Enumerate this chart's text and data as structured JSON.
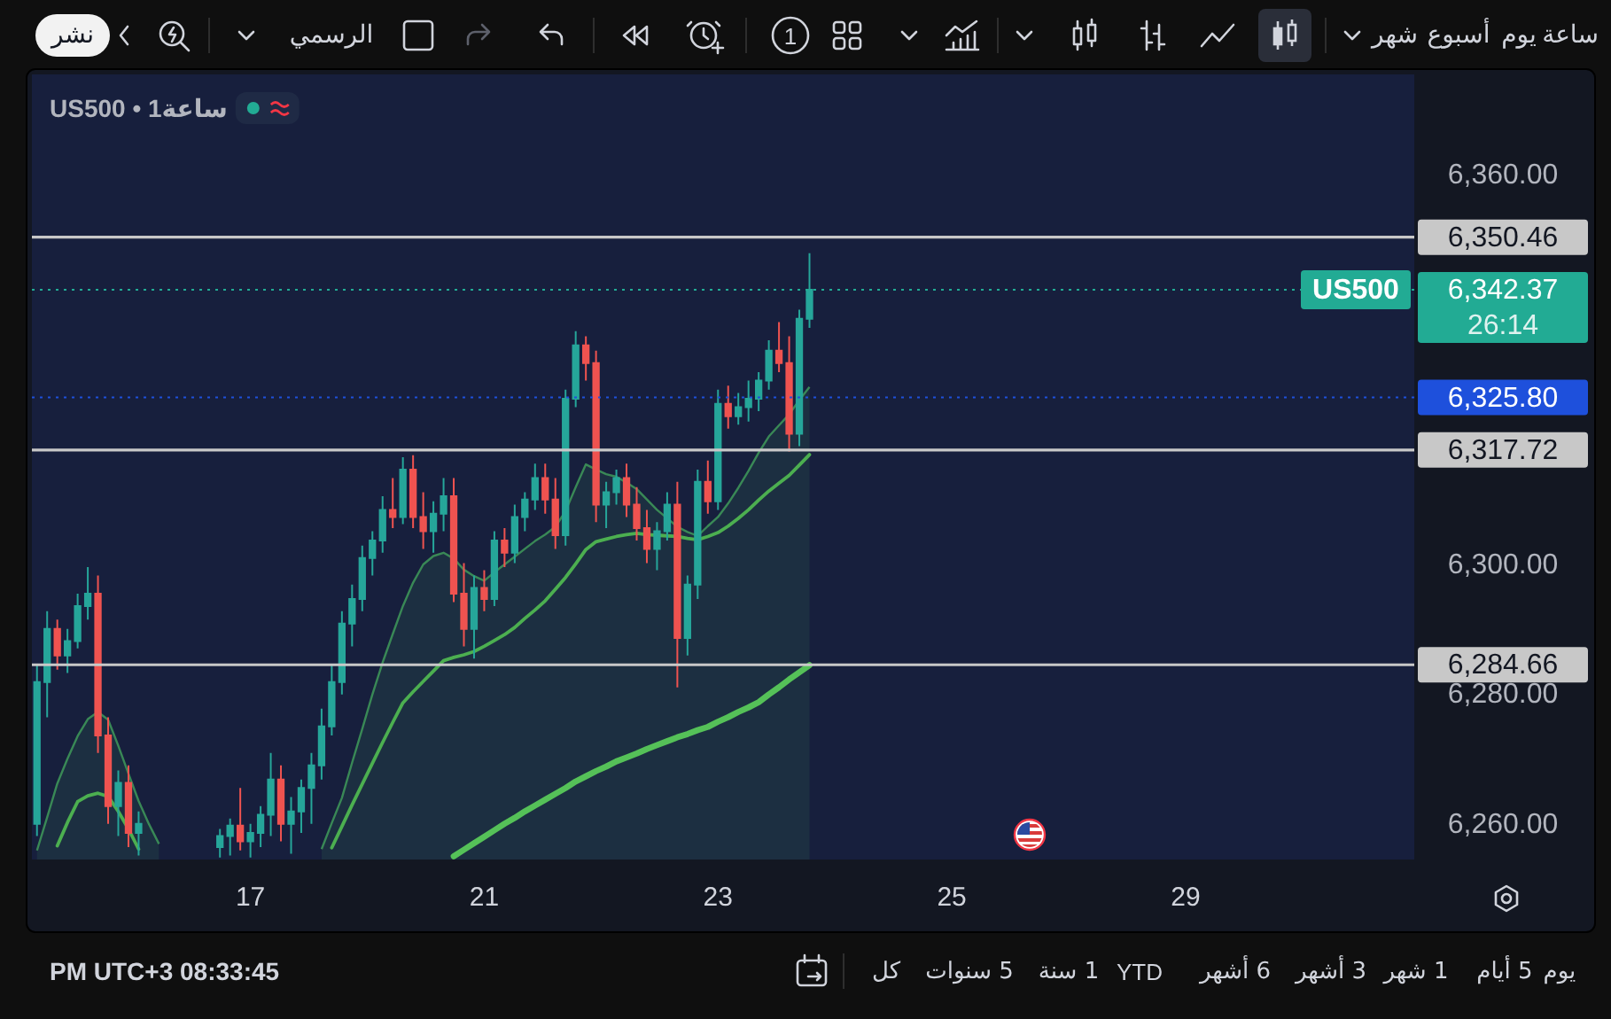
{
  "chart_data": {
    "type": "candlestick",
    "title": "US500 • 1ساعة",
    "categories": [
      null,
      null,
      null,
      null,
      null,
      null,
      null,
      null,
      null,
      null,
      null,
      null,
      null,
      null,
      null,
      null,
      null,
      null,
      null,
      null,
      null,
      "17",
      null,
      null,
      null,
      null,
      null,
      null,
      null,
      null,
      null,
      null,
      null,
      null,
      null,
      null,
      null,
      null,
      null,
      null,
      null,
      null,
      null,
      null,
      "21",
      null,
      null,
      null,
      null,
      null,
      null,
      null,
      null,
      null,
      null,
      null,
      null,
      null,
      null,
      null,
      null,
      null,
      null,
      null,
      null,
      null,
      null,
      "23",
      null,
      null,
      null,
      null,
      null,
      null,
      null,
      null,
      null,
      null,
      null,
      null,
      null,
      null,
      null,
      null,
      null,
      null,
      null,
      null,
      null,
      null,
      "25",
      null,
      null,
      null,
      null,
      null,
      null,
      null,
      null,
      null,
      null,
      null,
      null,
      null,
      null,
      null,
      null,
      null,
      null,
      null,
      null,
      null,
      null,
      "29",
      null,
      null,
      null,
      null,
      null,
      null,
      null,
      null,
      null,
      null,
      null,
      null,
      null,
      null,
      null,
      null,
      null,
      null,
      null,
      null,
      null,
      null
    ],
    "ohlc": [
      [
        6260.2,
        6284.7,
        6258.3,
        6282.0
      ],
      [
        6282.0,
        6292.9,
        6276.6,
        6290.2
      ],
      [
        6290.2,
        6291.6,
        6283.9,
        6286.1
      ],
      [
        6286.1,
        6290.2,
        6283.4,
        6288.3
      ],
      [
        6288.3,
        6295.6,
        6287.2,
        6293.7
      ],
      [
        6293.7,
        6299.7,
        6291.6,
        6295.6
      ],
      [
        6295.6,
        6298.4,
        6271.1,
        6273.8
      ],
      [
        6273.8,
        6276.6,
        6260.2,
        6262.9
      ],
      [
        6262.9,
        6268.4,
        6258.3,
        6266.5
      ],
      [
        6266.5,
        6269.2,
        6256.6,
        6258.8
      ],
      [
        6258.8,
        6262.1,
        6255.3,
        6260.2
      ],
      null,
      null,
      null,
      null,
      null,
      null,
      null,
      [
        6256.6,
        6259.4,
        6255.0,
        6258.3
      ],
      [
        6258.3,
        6261.0,
        6255.3,
        6259.9
      ],
      [
        6259.9,
        6265.7,
        6256.1,
        6257.5
      ],
      [
        6257.5,
        6260.2,
        6255.0,
        6258.8
      ],
      [
        6258.8,
        6262.9,
        6256.6,
        6261.6
      ],
      [
        6261.6,
        6271.1,
        6258.3,
        6267.0
      ],
      [
        6267.0,
        6269.2,
        6257.5,
        6260.2
      ],
      [
        6260.2,
        6264.3,
        6255.6,
        6262.1
      ],
      [
        6262.1,
        6267.0,
        6258.8,
        6265.7
      ],
      [
        6265.7,
        6271.1,
        6260.2,
        6269.2
      ],
      [
        6269.2,
        6277.9,
        6267.0,
        6275.2
      ],
      [
        6275.2,
        6284.7,
        6273.8,
        6282.0
      ],
      [
        6282.0,
        6292.9,
        6280.1,
        6291.0
      ],
      [
        6291.0,
        6297.0,
        6287.5,
        6294.8
      ],
      [
        6294.8,
        6303.0,
        6292.9,
        6301.1
      ],
      [
        6301.1,
        6305.2,
        6298.4,
        6303.8
      ],
      [
        6303.8,
        6310.6,
        6301.9,
        6308.5
      ],
      [
        6308.5,
        6313.4,
        6305.7,
        6307.4
      ],
      [
        6307.4,
        6316.6,
        6306.3,
        6314.7
      ],
      [
        6314.7,
        6316.9,
        6305.7,
        6307.4
      ],
      [
        6307.4,
        6311.2,
        6302.5,
        6305.2
      ],
      [
        6305.2,
        6309.8,
        6301.9,
        6307.9
      ],
      [
        6307.9,
        6313.4,
        6305.2,
        6310.6
      ],
      [
        6310.6,
        6313.4,
        6294.3,
        6295.6
      ],
      [
        6295.6,
        6300.3,
        6287.5,
        6290.2
      ],
      [
        6290.2,
        6298.4,
        6285.6,
        6296.5
      ],
      [
        6296.5,
        6299.2,
        6292.9,
        6294.8
      ],
      [
        6294.8,
        6305.2,
        6293.7,
        6303.8
      ],
      [
        6303.8,
        6305.7,
        6299.7,
        6301.9
      ],
      [
        6301.9,
        6309.3,
        6300.3,
        6307.4
      ],
      [
        6307.4,
        6311.2,
        6305.2,
        6310.1
      ],
      [
        6310.1,
        6315.6,
        6308.5,
        6313.4
      ],
      [
        6313.4,
        6315.6,
        6307.9,
        6310.1
      ],
      [
        6310.1,
        6313.4,
        6302.5,
        6304.6
      ],
      [
        6304.6,
        6327.0,
        6303.0,
        6325.6
      ],
      [
        6325.6,
        6336.0,
        6324.3,
        6333.8
      ],
      [
        6333.8,
        6335.2,
        6328.4,
        6331.1
      ],
      [
        6331.1,
        6333.0,
        6306.6,
        6309.3
      ],
      [
        6309.3,
        6312.8,
        6305.7,
        6311.2
      ],
      [
        6311.2,
        6314.7,
        6309.3,
        6313.4
      ],
      [
        6313.4,
        6315.6,
        6307.4,
        6309.3
      ],
      [
        6309.3,
        6312.0,
        6303.8,
        6305.7
      ],
      [
        6305.7,
        6308.5,
        6300.3,
        6302.5
      ],
      [
        6302.5,
        6306.6,
        6299.2,
        6305.2
      ],
      [
        6305.2,
        6311.2,
        6303.8,
        6309.3
      ],
      [
        6309.3,
        6312.8,
        6281.2,
        6288.8
      ],
      [
        6288.8,
        6298.4,
        6286.1,
        6297.0
      ],
      [
        6297.0,
        6314.7,
        6294.8,
        6312.8
      ],
      [
        6312.8,
        6316.1,
        6307.9,
        6309.8
      ],
      [
        6309.8,
        6327.0,
        6308.5,
        6324.8
      ],
      [
        6324.8,
        6327.6,
        6321.0,
        6322.9
      ],
      [
        6322.9,
        6326.5,
        6321.6,
        6324.3
      ],
      [
        6324.3,
        6328.4,
        6322.1,
        6325.6
      ],
      [
        6325.6,
        6329.7,
        6323.7,
        6328.4
      ],
      [
        6328.4,
        6334.6,
        6327.0,
        6333.0
      ],
      [
        6333.0,
        6337.4,
        6329.7,
        6331.1
      ],
      [
        6331.1,
        6335.2,
        6317.5,
        6320.2
      ],
      [
        6320.2,
        6339.3,
        6318.3,
        6337.9
      ],
      [
        6337.9,
        6348.0,
        6336.5,
        6342.37
      ],
      null,
      null,
      null,
      null,
      null,
      null,
      null,
      null,
      null,
      null,
      null,
      null,
      null,
      null,
      null,
      null,
      null,
      null,
      null,
      null,
      null,
      null,
      null,
      null,
      null,
      null,
      null,
      null,
      null,
      null,
      null,
      null,
      null,
      null,
      null,
      null,
      null,
      null,
      null,
      null,
      null,
      null,
      null,
      null,
      null,
      null,
      null,
      null,
      null,
      null,
      null,
      null,
      null,
      null,
      null,
      null,
      null,
      null,
      null
    ],
    "colors": [
      "#26a69a",
      "#26a69a",
      "#ef5350",
      "#26a69a",
      "#26a69a",
      "#26a69a",
      "#ef5350",
      "#ef5350",
      "#26a69a",
      "#ef5350",
      "#26a69a",
      null,
      null,
      null,
      null,
      null,
      null,
      null,
      "#26a69a",
      "#26a69a",
      "#ef5350",
      "#26a69a",
      "#26a69a",
      "#26a69a",
      "#ef5350",
      "#26a69a",
      "#26a69a",
      "#26a69a",
      "#26a69a",
      "#26a69a",
      "#26a69a",
      "#26a69a",
      "#26a69a",
      "#26a69a",
      "#26a69a",
      "#ef5350",
      "#26a69a",
      "#ef5350",
      "#ef5350",
      "#26a69a",
      "#26a69a",
      "#ef5350",
      "#ef5350",
      "#26a69a",
      "#ef5350",
      "#26a69a",
      "#ef5350",
      "#26a69a",
      "#26a69a",
      "#26a69a",
      "#ef5350",
      "#ef5350",
      "#26a69a",
      "#26a69a",
      "#ef5350",
      "#ef5350",
      "#26a69a",
      "#26a69a",
      "#ef5350",
      "#ef5350",
      "#ef5350",
      "#26a69a",
      "#26a69a",
      "#ef5350",
      "#26a69a",
      "#26a69a",
      "#ef5350",
      "#26a69a",
      "#ef5350",
      "#26a69a",
      "#26a69a",
      "#26a69a",
      "#26a69a",
      "#ef5350",
      "#ef5350",
      "#26a69a",
      "#26a69a",
      null,
      null,
      null,
      null,
      null,
      null,
      null,
      null,
      null,
      null,
      null,
      null,
      null,
      null,
      null,
      null,
      null,
      null,
      null,
      null,
      null,
      null,
      null,
      null,
      null,
      null,
      null,
      null,
      null,
      null,
      null,
      null,
      null,
      null,
      null,
      null,
      null,
      null,
      null,
      null,
      null,
      null,
      null,
      null,
      null,
      null,
      null,
      null,
      null,
      null,
      null,
      null,
      null,
      null,
      null,
      null,
      null,
      null,
      null
    ],
    "series": [
      {
        "type": "area",
        "color": "#3f9a5a",
        "values": [
          6256.1,
          6261.2,
          6266.4,
          6270.2,
          6273.7,
          6276.3,
          6277.4,
          6276.2,
          6272.2,
          6267.9,
          6263.7,
          6260.2,
          6257.1,
          null,
          null,
          null,
          null,
          null,
          null,
          null,
          null,
          null,
          null,
          null,
          null,
          null,
          null,
          null,
          6256.3,
          6260.3,
          6264.2,
          6269.6,
          6274.8,
          6280.1,
          6285.0,
          6289.4,
          6293.7,
          6297.3,
          6300.1,
          6301.4,
          6301.9,
          6301.0,
          6299.3,
          6298.3,
          6297.6,
          6298.9,
          6300.1,
          6301.3,
          6302.5,
          6303.7,
          6304.7,
          6305.9,
          6308.3,
          6312.0,
          6315.5,
          6314.7,
          6314.0,
          6313.6,
          6312.7,
          6311.7,
          6310.1,
          6308.5,
          6307.2,
          6305.9,
          6305.1,
          6304.5,
          6306.0,
          6307.4,
          6309.5,
          6311.9,
          6314.5,
          6317.3,
          6319.8,
          6321.5,
          6323.2,
          6325.4,
          6327.4,
          null,
          null,
          null,
          null,
          null,
          null,
          null,
          null,
          null,
          null,
          null,
          null,
          null,
          null,
          null,
          null,
          null,
          null,
          null,
          null,
          null,
          null,
          null,
          null,
          null,
          null,
          null,
          null,
          null,
          null,
          null,
          null,
          null,
          null,
          null,
          null,
          null,
          null,
          null,
          null,
          null,
          null,
          null,
          null,
          null,
          null,
          null,
          null,
          null,
          null,
          null,
          null,
          null,
          null,
          null,
          null,
          null,
          null,
          null
        ]
      },
      {
        "type": "line",
        "color": "#4caf50",
        "values": [
          null,
          null,
          6256.8,
          6260.4,
          6263.6,
          6264.5,
          6264.9,
          6264.4,
          6262.1,
          6259.4,
          6256.3,
          null,
          null,
          null,
          null,
          null,
          null,
          null,
          null,
          null,
          null,
          null,
          null,
          null,
          null,
          null,
          null,
          null,
          null,
          6256.5,
          6259.8,
          6263.1,
          6266.3,
          6269.5,
          6272.7,
          6275.8,
          6278.8,
          6280.5,
          6282.1,
          6283.7,
          6285.3,
          6285.8,
          6286.2,
          6286.7,
          6287.5,
          6288.4,
          6289.3,
          6290.4,
          6291.8,
          6293.1,
          6294.5,
          6296.3,
          6298.1,
          6300.2,
          6302.4,
          6303.6,
          6304.0,
          6304.4,
          6304.7,
          6304.9,
          6304.7,
          6304.6,
          6304.5,
          6304.4,
          6304.1,
          6303.9,
          6304.4,
          6305.0,
          6306.0,
          6307.2,
          6308.5,
          6310.0,
          6311.4,
          6312.6,
          6313.8,
          6315.4,
          6317.0,
          null,
          null,
          null,
          null,
          null,
          null,
          null,
          null,
          null,
          null,
          null,
          null,
          null,
          null,
          null,
          null,
          null,
          null,
          null,
          null,
          null,
          null,
          null,
          null,
          null,
          null,
          null,
          null,
          null,
          null,
          null,
          null,
          null,
          null,
          null,
          null,
          null,
          null,
          null,
          null,
          null,
          null,
          null,
          null,
          null,
          null,
          null,
          null,
          null,
          null,
          null,
          null,
          null,
          null,
          null,
          null,
          null,
          null,
          null
        ]
      },
      {
        "type": "line",
        "color": "#55c158",
        "values": [
          null,
          null,
          null,
          null,
          null,
          null,
          null,
          null,
          null,
          null,
          null,
          null,
          null,
          null,
          null,
          null,
          null,
          null,
          null,
          null,
          null,
          null,
          null,
          null,
          null,
          null,
          null,
          null,
          null,
          null,
          null,
          null,
          null,
          null,
          null,
          null,
          null,
          null,
          null,
          null,
          null,
          6255.2,
          6256.2,
          6257.2,
          6258.2,
          6259.2,
          6260.2,
          6261.1,
          6262.1,
          6263.0,
          6263.9,
          6264.8,
          6265.7,
          6266.7,
          6267.5,
          6268.3,
          6269.0,
          6269.8,
          6270.4,
          6271.0,
          6271.7,
          6272.3,
          6272.9,
          6273.5,
          6274.0,
          6274.6,
          6275.1,
          6275.9,
          6276.6,
          6277.4,
          6278.1,
          6278.9,
          6280.1,
          6281.2,
          6282.4,
          6283.5,
          6284.6,
          null,
          null,
          null,
          null,
          null,
          null,
          null,
          null,
          null,
          null,
          null,
          null,
          null,
          null,
          null,
          null,
          null,
          null,
          null,
          null,
          null,
          null,
          null,
          null,
          null,
          null,
          null,
          null,
          null,
          null,
          null,
          null,
          null,
          null,
          null,
          null,
          null,
          null,
          null,
          null,
          null,
          null,
          null,
          null,
          null,
          null,
          null,
          null,
          null,
          null,
          null,
          null,
          null,
          null,
          null,
          null,
          null,
          null,
          null
        ]
      }
    ],
    "ylim": [
      6254.7,
      6375.5
    ],
    "yticks": [
      {
        "value": 6260,
        "label": "6,260.00"
      },
      {
        "value": 6280,
        "label": "6,280.00"
      },
      {
        "value": 6300,
        "label": "6,300.00"
      },
      {
        "value": 6360,
        "label": "6,360.00"
      }
    ],
    "ref_lines": [
      {
        "axis": "y",
        "value": 6350.46,
        "label": "6,350.46",
        "color": "#c8c8c8",
        "line_style": "solid"
      },
      {
        "axis": "y",
        "value": 6342.37,
        "label": "6,342.37\n26:14",
        "color": "#22ab94",
        "line_style": "dotted"
      },
      {
        "axis": "y",
        "value": 6325.8,
        "label": "6,325.80",
        "color": "#1e50dc",
        "line_style": "dotted"
      },
      {
        "axis": "y",
        "value": 6317.72,
        "label": "6,317.72",
        "color": "#c8c8c8",
        "line_style": "solid"
      },
      {
        "axis": "y",
        "value": 6284.66,
        "label": "6,284.66",
        "color": "#c8c8c8",
        "line_style": "solid"
      }
    ],
    "annotations": [
      "نشر",
      "الرسمي",
      "1",
      "شهر",
      "أسبوع",
      "يوم",
      "ساعة",
      "PM UTC+3 08:33:45",
      "يوم",
      "5 أيام",
      "1 شهر",
      "3 أشهر",
      "6 أشهر",
      "YTD",
      "1 سنة",
      "5 سنوات",
      "كل",
      {
        "text": "US500",
        "y": 6342.37
      }
    ]
  }
}
